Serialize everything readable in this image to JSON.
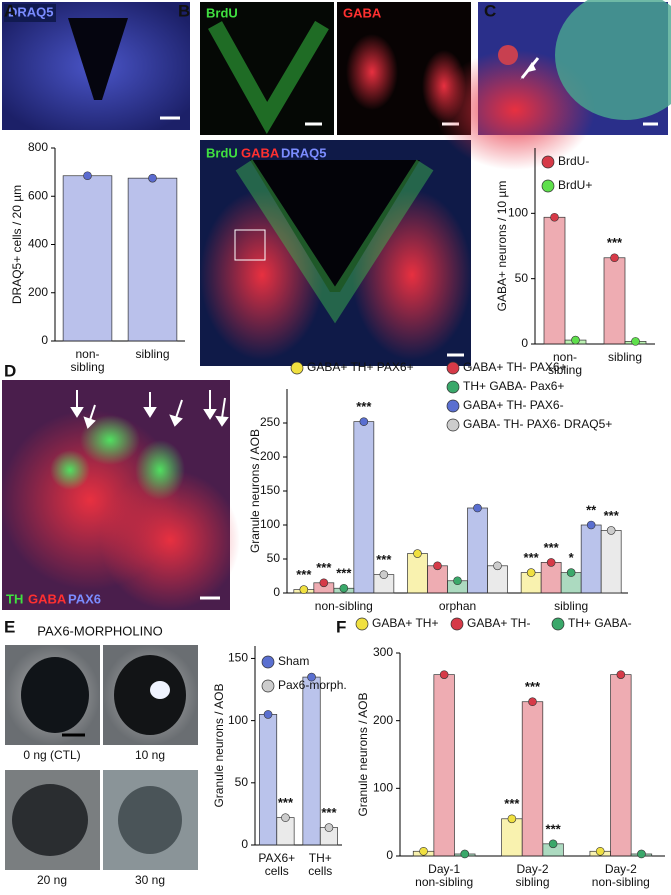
{
  "panel_labels": [
    "A",
    "B",
    "C",
    "D",
    "E",
    "F"
  ],
  "image_labels": {
    "A": "DRAQ5",
    "B_top_left": "BrdU",
    "B_top_right": "GABA",
    "B_bottom": [
      "BrdU",
      "GABA",
      "DRAQ5"
    ],
    "D": [
      "TH",
      "GABA",
      "PAX6"
    ],
    "E_title": "PAX6-MORPHOLINO",
    "E_doses": [
      "0 ng (CTL)",
      "10 ng",
      "20 ng",
      "30 ng"
    ]
  },
  "chart_data": [
    {
      "type": "bar",
      "ylabel": "DRAQ5+ cells / 20 µm",
      "categories": [
        "non- sibling",
        "sibling"
      ],
      "series": [
        {
          "color": "#5b6bd0",
          "values": [
            685,
            675
          ]
        }
      ],
      "ylim": [
        0,
        800
      ],
      "yticks": [
        0,
        200,
        400,
        600,
        800
      ]
    },
    {
      "type": "bar",
      "ylabel": "GABA+ neurons / 10 µm",
      "categories": [
        "non- sibling",
        "sibling"
      ],
      "series": [
        {
          "name": "BrdU-",
          "color": "#d63a48",
          "values": [
            97,
            66
          ],
          "annotations": [
            null,
            "***"
          ]
        },
        {
          "name": "BrdU+",
          "color": "#5fe04c",
          "values": [
            3,
            2
          ]
        }
      ],
      "ylim": [
        0,
        150
      ],
      "yticks": [
        0,
        50,
        100
      ]
    },
    {
      "type": "bar",
      "ylabel": "Granule neurons / AOB",
      "categories": [
        "non-sibling",
        "orphan",
        "sibling"
      ],
      "series": [
        {
          "name": "GABA+ TH+ PAX6+",
          "color": "#f0e040",
          "values": [
            5,
            58,
            30
          ],
          "annotations": [
            "***",
            null,
            "***"
          ]
        },
        {
          "name": "GABA+ TH- PAX6+",
          "color": "#d63a48",
          "values": [
            15,
            40,
            45
          ],
          "annotations": [
            "***",
            null,
            "***"
          ]
        },
        {
          "name": "TH+ GABA- Pax6+",
          "color": "#3aa86a",
          "values": [
            7,
            18,
            30
          ],
          "annotations": [
            "***",
            null,
            "*"
          ]
        },
        {
          "name": "GABA+ TH- PAX6-",
          "color": "#5a6fd0",
          "values": [
            252,
            125,
            100
          ],
          "annotations": [
            "***",
            null,
            "**"
          ]
        },
        {
          "name": "GABA- TH- PAX6- DRAQ5+",
          "color": "#cccccc",
          "values": [
            27,
            40,
            92
          ],
          "annotations": [
            "***",
            null,
            "***"
          ]
        }
      ],
      "ylim": [
        0,
        300
      ],
      "yticks": [
        0,
        50,
        100,
        150,
        200,
        250
      ]
    },
    {
      "type": "bar",
      "ylabel": "Granule neurons / AOB",
      "categories": [
        "PAX6+ cells",
        "TH+ cells"
      ],
      "series": [
        {
          "name": "Sham",
          "color": "#5a6fd0",
          "values": [
            105,
            135
          ]
        },
        {
          "name": "Pax6-morph.",
          "color": "#cccccc",
          "values": [
            22,
            14
          ],
          "annotations": [
            "***",
            "***"
          ]
        }
      ],
      "ylim": [
        0,
        160
      ],
      "yticks": [
        0,
        50,
        100,
        150
      ]
    },
    {
      "type": "bar",
      "ylabel": "Granule neurons / AOB",
      "categories": [
        "Day-1 non-sibling",
        "Day-2 sibling",
        "Day-2 non-sibling"
      ],
      "series": [
        {
          "name": "GABA+ TH+",
          "color": "#f0e040",
          "values": [
            7,
            55,
            7
          ],
          "annotations": [
            null,
            "***",
            null
          ]
        },
        {
          "name": "GABA+ TH-",
          "color": "#d63a48",
          "values": [
            268,
            228,
            268
          ],
          "annotations": [
            null,
            "***",
            null
          ]
        },
        {
          "name": "TH+ GABA-",
          "color": "#3aa86a",
          "values": [
            3,
            18,
            3
          ],
          "annotations": [
            null,
            "***",
            null
          ]
        }
      ],
      "ylim": [
        0,
        300
      ],
      "yticks": [
        0,
        100,
        200,
        300
      ]
    }
  ]
}
